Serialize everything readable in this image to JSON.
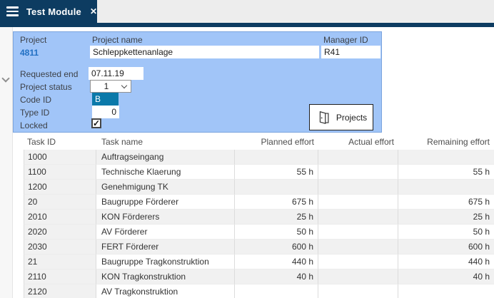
{
  "tab": {
    "title": "Test Module"
  },
  "icons": {
    "menu_icon": "hamburger-bars",
    "close_glyph": "✕",
    "collapse_icon": "chevron-down",
    "select_chevron_icon": "chevron-down",
    "check_glyph": "✓",
    "door_icon": "open-door"
  },
  "colors": {
    "navy": "#0d3c61",
    "topbar_gray": "#ededed",
    "panel_blue": "#a1c5f8",
    "panel_border": "#7ba4de",
    "code_blue": "#0b79a9",
    "link_blue": "#2270c3",
    "row_gray": "#f1f1f1"
  },
  "form": {
    "project": {
      "label": "Project",
      "value": "4811"
    },
    "project_name": {
      "label": "Project name",
      "value": "Schleppkettenanlage"
    },
    "manager_id": {
      "label": "Manager ID",
      "value": "R41"
    },
    "requested_end": {
      "label": "Requested end",
      "value": "07.11.19"
    },
    "project_status": {
      "label": "Project status",
      "value": "1"
    },
    "code_id": {
      "label": "Code ID",
      "value": "B"
    },
    "type_id": {
      "label": "Type ID",
      "value": "0"
    },
    "locked": {
      "label": "Locked",
      "checked": true
    },
    "projects_button_label": "Projects"
  },
  "table": {
    "columns": [
      "Task ID",
      "Task name",
      "Planned effort",
      "Actual effort",
      "Remaining effort"
    ],
    "rows": [
      {
        "task_id": "1000",
        "task_name": "Auftragseingang",
        "planned": "",
        "actual": "",
        "remaining": ""
      },
      {
        "task_id": "1100",
        "task_name": "Technische Klaerung",
        "planned": "55 h",
        "actual": "",
        "remaining": "55 h"
      },
      {
        "task_id": "1200",
        "task_name": "Genehmigung TK",
        "planned": "",
        "actual": "",
        "remaining": ""
      },
      {
        "task_id": "20",
        "task_name": "Baugruppe Förderer",
        "planned": "675 h",
        "actual": "",
        "remaining": "675 h"
      },
      {
        "task_id": "2010",
        "task_name": "KON Förderers",
        "planned": "25 h",
        "actual": "",
        "remaining": "25 h"
      },
      {
        "task_id": "2020",
        "task_name": "AV Förderer",
        "planned": "50 h",
        "actual": "",
        "remaining": "50 h"
      },
      {
        "task_id": "2030",
        "task_name": "FERT Förderer",
        "planned": "600 h",
        "actual": "",
        "remaining": "600 h"
      },
      {
        "task_id": "21",
        "task_name": "Baugruppe Tragkonstruktion",
        "planned": "440 h",
        "actual": "",
        "remaining": "440 h"
      },
      {
        "task_id": "2110",
        "task_name": "KON Tragkonstruktion",
        "planned": "40 h",
        "actual": "",
        "remaining": "40 h"
      },
      {
        "task_id": "2120",
        "task_name": "AV Tragkonstruktion",
        "planned": "",
        "actual": "",
        "remaining": ""
      }
    ]
  }
}
